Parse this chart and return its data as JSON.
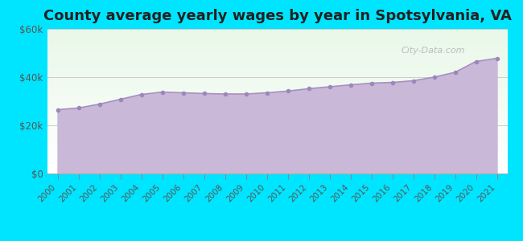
{
  "title": "County average yearly wages by year in Spotsylvania, VA",
  "years": [
    2000,
    2001,
    2002,
    2003,
    2004,
    2005,
    2006,
    2007,
    2008,
    2009,
    2010,
    2011,
    2012,
    2013,
    2014,
    2015,
    2016,
    2017,
    2018,
    2019,
    2020,
    2021
  ],
  "wages": [
    26500,
    27200,
    28800,
    30800,
    32800,
    33800,
    33500,
    33200,
    33000,
    33000,
    33500,
    34200,
    35200,
    36000,
    36800,
    37500,
    37800,
    38500,
    40000,
    42000,
    46500,
    47800
  ],
  "ylim": [
    0,
    60000
  ],
  "yticks": [
    0,
    20000,
    40000,
    60000
  ],
  "ytick_labels": [
    "$0",
    "$20k",
    "$40k",
    "$60k"
  ],
  "fill_color": "#c9b8d8",
  "line_color": "#a890c0",
  "marker_color": "#9b87bc",
  "bg_color_fig": "#00e5ff",
  "title_fontsize": 13,
  "watermark": "City-Data.com"
}
